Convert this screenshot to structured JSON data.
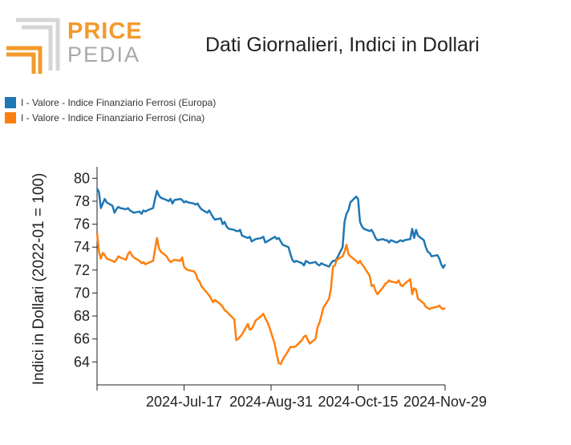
{
  "logo": {
    "word1": "PRICE",
    "word2": "PEDIA"
  },
  "chart_data": {
    "type": "line",
    "title": "Dati Giornalieri, Indici in Dollari",
    "ylabel": "Indici in Dollari (2022-01 = 100)",
    "xlabel": "",
    "ylim": [
      62,
      81
    ],
    "y_ticks": [
      64,
      66,
      68,
      70,
      72,
      74,
      76,
      78,
      80
    ],
    "x_tick_labels": [
      "2024-Jul-17",
      "2024-Aug-31",
      "2024-Oct-15",
      "2024-Nov-29"
    ],
    "legend_position": "top-left",
    "grid": false,
    "x": [
      "2024-06-02",
      "2024-06-03",
      "2024-06-04",
      "2024-06-05",
      "2024-06-06",
      "2024-06-07",
      "2024-06-10",
      "2024-06-11",
      "2024-06-12",
      "2024-06-13",
      "2024-06-14",
      "2024-06-17",
      "2024-06-18",
      "2024-06-19",
      "2024-06-20",
      "2024-06-21",
      "2024-06-24",
      "2024-06-25",
      "2024-06-26",
      "2024-06-27",
      "2024-06-28",
      "2024-07-01",
      "2024-07-02",
      "2024-07-03",
      "2024-07-04",
      "2024-07-05",
      "2024-07-08",
      "2024-07-09",
      "2024-07-10",
      "2024-07-11",
      "2024-07-12",
      "2024-07-15",
      "2024-07-16",
      "2024-07-17",
      "2024-07-18",
      "2024-07-19",
      "2024-07-22",
      "2024-07-23",
      "2024-07-24",
      "2024-07-25",
      "2024-07-26",
      "2024-07-29",
      "2024-07-30",
      "2024-07-31",
      "2024-08-01",
      "2024-08-02",
      "2024-08-05",
      "2024-08-06",
      "2024-08-07",
      "2024-08-08",
      "2024-08-09",
      "2024-08-12",
      "2024-08-13",
      "2024-08-14",
      "2024-08-15",
      "2024-08-16",
      "2024-08-19",
      "2024-08-20",
      "2024-08-21",
      "2024-08-22",
      "2024-08-23",
      "2024-08-26",
      "2024-08-27",
      "2024-08-28",
      "2024-08-29",
      "2024-08-30",
      "2024-09-02",
      "2024-09-03",
      "2024-09-04",
      "2024-09-05",
      "2024-09-06",
      "2024-09-09",
      "2024-09-10",
      "2024-09-11",
      "2024-09-12",
      "2024-09-13",
      "2024-09-16",
      "2024-09-17",
      "2024-09-18",
      "2024-09-19",
      "2024-09-20",
      "2024-09-23",
      "2024-09-24",
      "2024-09-25",
      "2024-09-26",
      "2024-09-27",
      "2024-09-30",
      "2024-10-01",
      "2024-10-02",
      "2024-10-03",
      "2024-10-04",
      "2024-10-07",
      "2024-10-08",
      "2024-10-09",
      "2024-10-10",
      "2024-10-11",
      "2024-10-14",
      "2024-10-15",
      "2024-10-16",
      "2024-10-17",
      "2024-10-18",
      "2024-10-21",
      "2024-10-22",
      "2024-10-23",
      "2024-10-24",
      "2024-10-25",
      "2024-10-28",
      "2024-10-29",
      "2024-10-30",
      "2024-10-31",
      "2024-11-01",
      "2024-11-04",
      "2024-11-05",
      "2024-11-06",
      "2024-11-07",
      "2024-11-08",
      "2024-11-11",
      "2024-11-12",
      "2024-11-13",
      "2024-11-14",
      "2024-11-15",
      "2024-11-18",
      "2024-11-19",
      "2024-11-20",
      "2024-11-21",
      "2024-11-22",
      "2024-11-25",
      "2024-11-26",
      "2024-11-27",
      "2024-11-28",
      "2024-11-29"
    ],
    "series": [
      {
        "name": "I - Valore - Indice Finanziario Ferrosi (Europa)",
        "color": "#1f77b4",
        "values": [
          79.1,
          78.8,
          77.4,
          77.8,
          78.2,
          77.9,
          77.6,
          77.0,
          77.3,
          77.5,
          77.4,
          77.3,
          77.4,
          77.2,
          77.1,
          77.0,
          77.1,
          76.9,
          77.2,
          77.1,
          77.2,
          77.4,
          78.2,
          78.9,
          78.5,
          78.3,
          78.1,
          78.0,
          78.2,
          77.8,
          78.1,
          78.2,
          78.1,
          77.9,
          78.0,
          77.9,
          77.8,
          77.7,
          77.8,
          77.5,
          77.3,
          77.0,
          77.2,
          76.9,
          76.6,
          76.4,
          76.5,
          76.0,
          76.2,
          75.8,
          75.6,
          75.5,
          75.4,
          75.4,
          75.5,
          75.0,
          74.8,
          74.9,
          74.5,
          74.6,
          74.7,
          74.8,
          74.9,
          74.4,
          74.5,
          74.6,
          74.9,
          74.7,
          74.8,
          74.5,
          74.2,
          74.0,
          73.4,
          72.9,
          72.7,
          72.8,
          72.6,
          72.4,
          72.8,
          72.7,
          72.6,
          72.7,
          72.5,
          72.4,
          72.6,
          72.5,
          72.3,
          72.6,
          72.8,
          72.8,
          73.0,
          74.0,
          76.2,
          76.9,
          77.2,
          77.9,
          78.4,
          78.2,
          76.2,
          75.8,
          75.6,
          75.4,
          75.5,
          75.2,
          74.8,
          74.6,
          74.7,
          74.6,
          74.6,
          74.4,
          74.6,
          74.4,
          74.5,
          74.6,
          74.5,
          74.6,
          74.7,
          75.6,
          74.8,
          75.5,
          75.0,
          74.6,
          74.0,
          73.6,
          73.5,
          73.2,
          73.3,
          73.0,
          72.5,
          72.2,
          72.5
        ]
      },
      {
        "name": "I - Valore - Indice Finanziario Ferrosi (Cina)",
        "color": "#ff7f0e",
        "values": [
          75.2,
          73.6,
          73.0,
          73.5,
          73.3,
          73.0,
          72.8,
          72.7,
          72.9,
          73.2,
          73.1,
          72.9,
          73.4,
          73.6,
          73.3,
          73.1,
          72.8,
          72.6,
          72.7,
          72.5,
          72.6,
          72.8,
          73.8,
          74.8,
          73.9,
          73.6,
          73.2,
          72.9,
          72.7,
          72.8,
          72.9,
          72.8,
          73.1,
          72.3,
          72.1,
          72.0,
          71.9,
          71.7,
          71.2,
          71.0,
          70.6,
          70.0,
          69.8,
          69.5,
          69.2,
          69.4,
          69.0,
          68.8,
          68.5,
          68.4,
          68.2,
          67.7,
          65.9,
          66.0,
          66.2,
          66.4,
          67.3,
          66.8,
          66.9,
          67.2,
          67.6,
          68.0,
          68.2,
          67.8,
          67.5,
          67.1,
          65.5,
          64.6,
          63.9,
          63.8,
          64.2,
          65.0,
          65.3,
          65.3,
          65.3,
          65.4,
          65.9,
          66.2,
          66.3,
          65.9,
          65.6,
          66.0,
          67.0,
          67.4,
          68.0,
          68.7,
          69.5,
          70.4,
          72.3,
          72.4,
          72.9,
          73.2,
          73.6,
          74.2,
          73.4,
          73.2,
          72.8,
          72.6,
          72.8,
          72.5,
          72.3,
          71.5,
          70.6,
          70.7,
          70.2,
          69.9,
          70.5,
          70.8,
          70.9,
          71.1,
          71.0,
          70.9,
          71.1,
          70.7,
          70.6,
          70.8,
          71.2,
          69.9,
          70.4,
          70.3,
          69.5,
          69.1,
          68.8,
          68.7,
          68.6,
          68.7,
          68.8,
          68.9,
          68.7,
          68.6,
          68.7
        ]
      }
    ]
  }
}
